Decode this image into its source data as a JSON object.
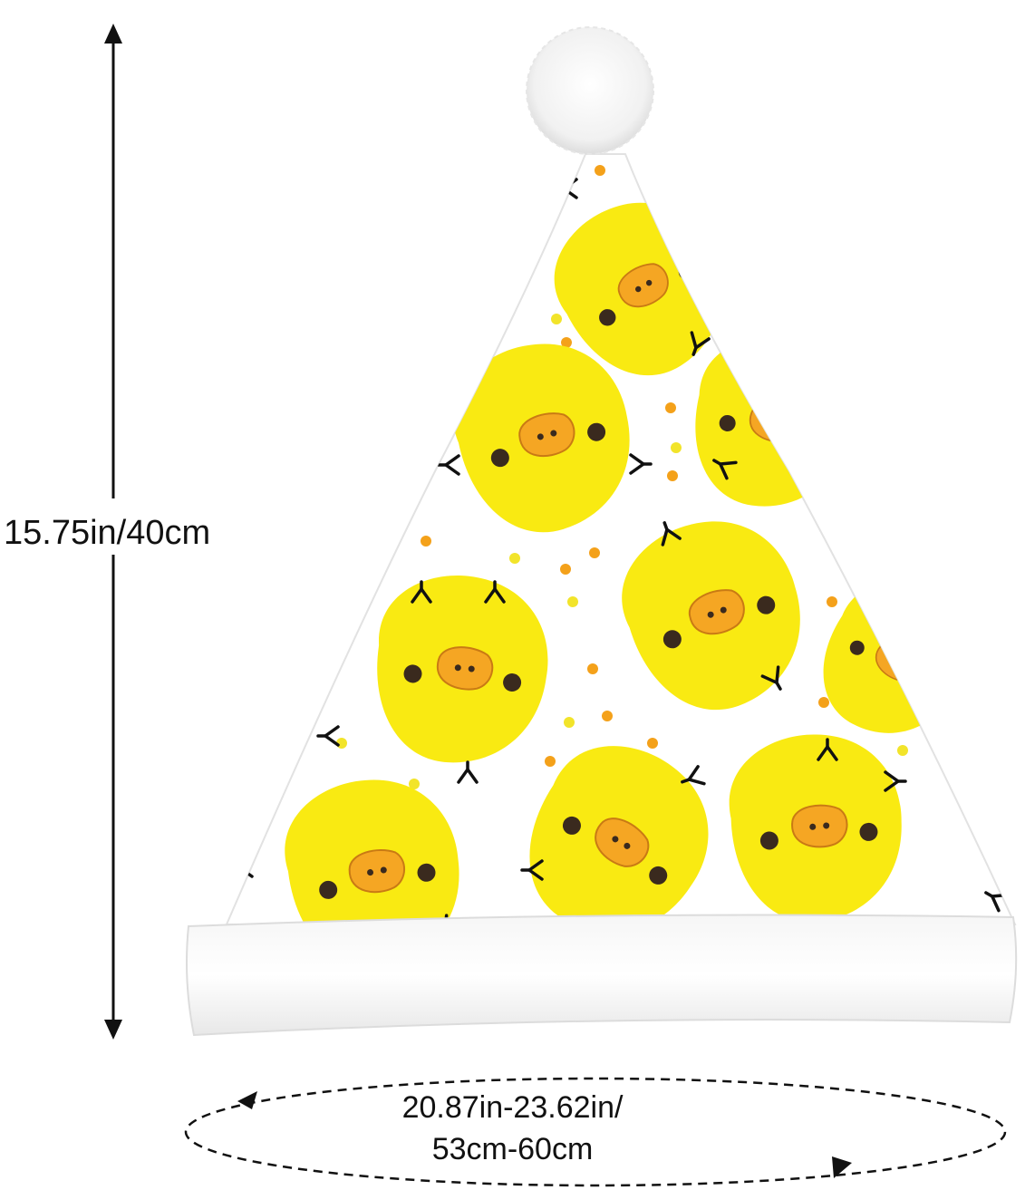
{
  "measurements": {
    "height_label": "15.75in/40cm",
    "circumference_line1": "20.87in-23.62in/",
    "circumference_line2": "53cm-60cm"
  },
  "product": {
    "icon": "santa-hat-chick-pattern-icon"
  },
  "colors": {
    "chick_yellow": "#f9ea12",
    "beak_orange": "#f5a623",
    "dot_orange": "#f4a11a",
    "dot_yellow": "#f2e42a",
    "eye_dark": "#3a2a1e",
    "fur_white": "#fdfdfd",
    "line_black": "#111111"
  }
}
